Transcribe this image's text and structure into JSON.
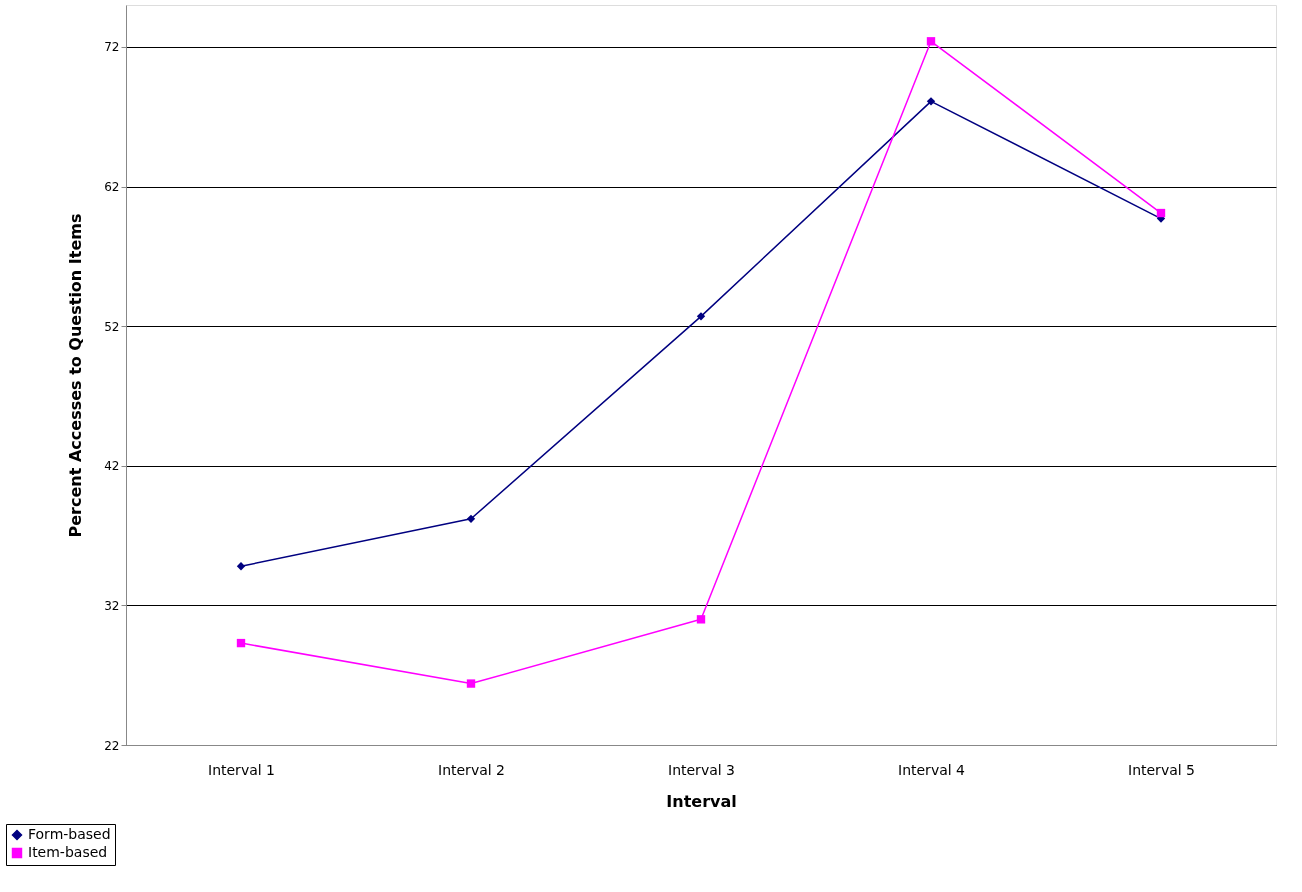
{
  "chart_data": {
    "type": "line",
    "xlabel": "Interval",
    "ylabel": "Percent Accesses to Question Items",
    "categories": [
      "Interval 1",
      "Interval 2",
      "Interval 3",
      "Interval 4",
      "Interval 5"
    ],
    "series": [
      {
        "name": "Form-based",
        "color": "#000080",
        "marker": "diamond",
        "values": [
          34.8,
          38.2,
          52.7,
          68.1,
          59.7
        ]
      },
      {
        "name": "Item-based",
        "color": "#ff00ff",
        "marker": "square",
        "values": [
          29.3,
          26.4,
          31.0,
          72.4,
          60.1
        ]
      }
    ],
    "ylim": [
      22,
      75
    ],
    "yticks": [
      22,
      32,
      42,
      52,
      62,
      72
    ],
    "grid": "y",
    "legend": "bottom left",
    "line_style": "solid"
  }
}
